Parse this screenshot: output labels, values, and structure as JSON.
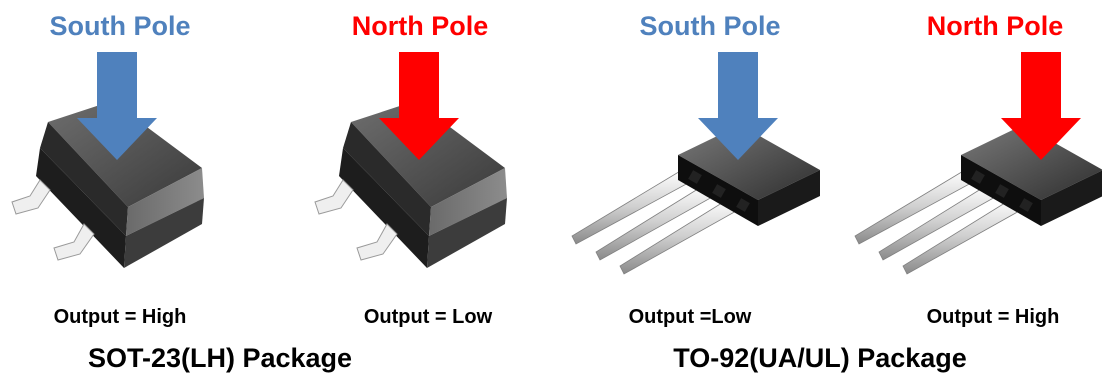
{
  "colors": {
    "south": "#4f81bd",
    "north": "#ff0000",
    "text": "#000000"
  },
  "packages": [
    {
      "label": "SOT-23(LH) Package",
      "units": [
        {
          "pole": "South Pole",
          "pole_color": "#4f81bd",
          "output": "Output = High",
          "icon": "sot23-chip-icon"
        },
        {
          "pole": "North Pole",
          "pole_color": "#ff0000",
          "output": "Output = Low",
          "icon": "sot23-chip-icon"
        }
      ]
    },
    {
      "label": "TO-92(UA/UL) Package",
      "units": [
        {
          "pole": "South Pole",
          "pole_color": "#4f81bd",
          "output": "Output =Low",
          "icon": "to92-chip-icon"
        },
        {
          "pole": "North Pole",
          "pole_color": "#ff0000",
          "output": "Output = High",
          "icon": "to92-chip-icon"
        }
      ]
    }
  ]
}
